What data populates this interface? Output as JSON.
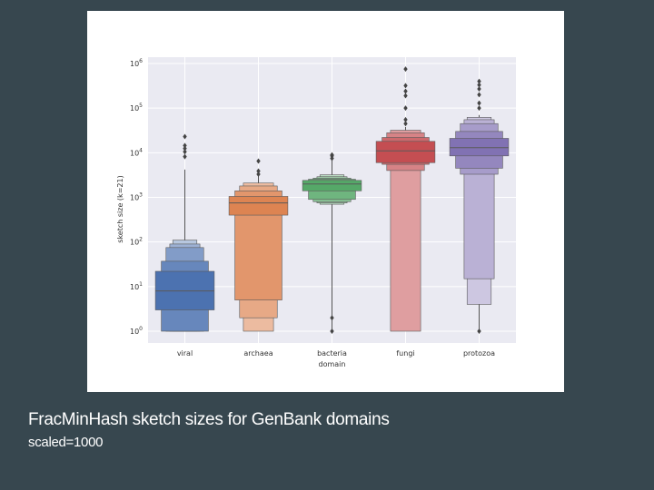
{
  "caption": {
    "title": "FracMinHash sketch sizes for GenBank domains",
    "subtitle": "scaled=1000"
  },
  "chart_data": {
    "type": "boxen",
    "xlabel": "domain",
    "ylabel": "sketch size (k=21)",
    "yscale": "log",
    "ylim": [
      0.8,
      1300000
    ],
    "yticks": [
      {
        "value": 1,
        "label": "10^0"
      },
      {
        "value": 10,
        "label": "10^1"
      },
      {
        "value": 100,
        "label": "10^2"
      },
      {
        "value": 1000,
        "label": "10^3"
      },
      {
        "value": 10000,
        "label": "10^4"
      },
      {
        "value": 100000,
        "label": "10^5"
      },
      {
        "value": 1000000,
        "label": "10^6"
      }
    ],
    "grid": true,
    "background": "#eaeaf2",
    "categories": [
      {
        "name": "viral",
        "color": "#4c72b0",
        "median": 8,
        "boxes": [
          [
            3,
            22
          ],
          [
            1,
            37
          ],
          [
            1,
            75
          ],
          [
            1,
            90
          ],
          [
            1,
            110
          ]
        ],
        "whisker": [
          1,
          4200
        ],
        "outliers": [
          8200,
          10500,
          12500,
          14500,
          23000
        ]
      },
      {
        "name": "archaea",
        "color": "#dd8452",
        "median": 750,
        "boxes": [
          [
            400,
            1050
          ],
          [
            5,
            1400
          ],
          [
            2,
            1800
          ],
          [
            1,
            2100
          ]
        ],
        "whisker": [
          1,
          3000
        ],
        "outliers": [
          3300,
          3900,
          6500
        ]
      },
      {
        "name": "bacteria",
        "color": "#55a868",
        "median": 2000,
        "boxes": [
          [
            1400,
            2400
          ],
          [
            900,
            2550
          ],
          [
            800,
            2700
          ],
          [
            750,
            2900
          ],
          [
            700,
            3200
          ]
        ],
        "whisker": [
          1,
          7000
        ],
        "outliers": [
          1,
          2,
          7500,
          8500,
          9000
        ]
      },
      {
        "name": "fungi",
        "color": "#c44e52",
        "median": 11000,
        "boxes": [
          [
            6000,
            18000
          ],
          [
            5500,
            22000
          ],
          [
            4000,
            28000
          ],
          [
            1,
            32000
          ]
        ],
        "whisker": [
          1,
          38000
        ],
        "outliers": [
          45000,
          55000,
          100000,
          190000,
          240000,
          320000,
          750000
        ]
      },
      {
        "name": "protozoa",
        "color": "#8172b3",
        "median": 13000,
        "boxes": [
          [
            8500,
            21000
          ],
          [
            4500,
            30000
          ],
          [
            3300,
            45000
          ],
          [
            15,
            55000
          ],
          [
            4,
            62000
          ]
        ],
        "whisker": [
          1,
          70000
        ],
        "outliers": [
          1,
          100000,
          130000,
          200000,
          270000,
          330000,
          400000
        ]
      }
    ]
  }
}
